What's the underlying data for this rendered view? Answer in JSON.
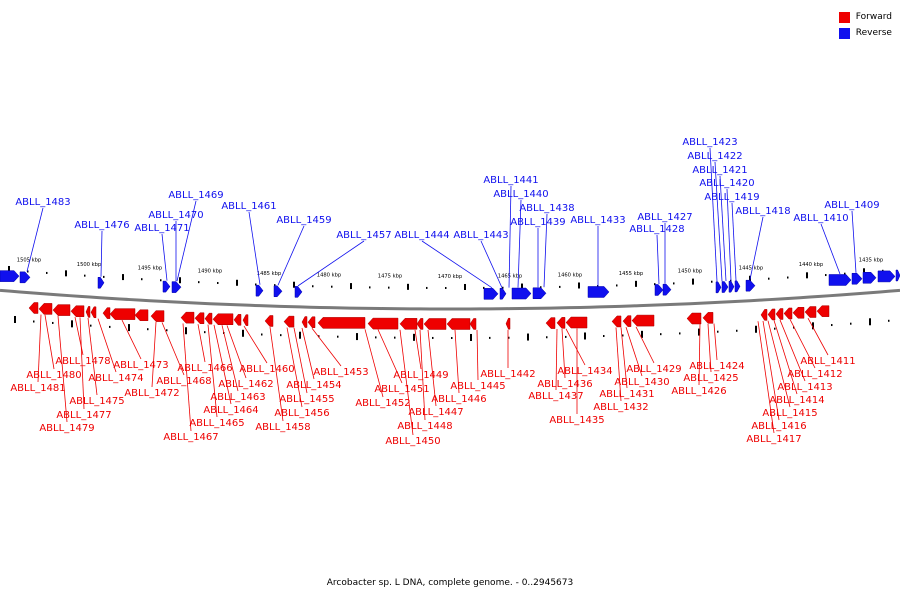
{
  "colors": {
    "forward": "#ee0000",
    "reverse": "#1010ee",
    "backbone": "#7a7a7a"
  },
  "legend": [
    {
      "label": "Forward",
      "color": "#ee0000"
    },
    {
      "label": "Reverse",
      "color": "#1010ee"
    }
  ],
  "caption": "Arcobacter sp. L DNA, complete genome. - 0..2945673",
  "ruler_labels": [
    "1505 kbp",
    "1500 kbp",
    "1495 kbp",
    "1490 kbp",
    "1485 kbp",
    "1480 kbp",
    "1475 kbp",
    "1470 kbp",
    "1465 kbp",
    "1460 kbp",
    "1455 kbp",
    "1450 kbp",
    "1445 kbp",
    "1440 kbp",
    "1435 kbp"
  ],
  "reverse_labels": [
    "ABLL_1483",
    "ABLL_1476",
    "ABLL_1471",
    "ABLL_1470",
    "ABLL_1469",
    "ABLL_1461",
    "ABLL_1459",
    "ABLL_1457",
    "ABLL_1444",
    "ABLL_1443",
    "ABLL_1441",
    "ABLL_1440",
    "ABLL_1439",
    "ABLL_1438",
    "ABLL_1433",
    "ABLL_1428",
    "ABLL_1427",
    "ABLL_1423",
    "ABLL_1422",
    "ABLL_1421",
    "ABLL_1420",
    "ABLL_1419",
    "ABLL_1418",
    "ABLL_1410",
    "ABLL_1409"
  ],
  "forward_labels": [
    "ABLL_1481",
    "ABLL_1480",
    "ABLL_1479",
    "ABLL_1478",
    "ABLL_1477",
    "ABLL_1475",
    "ABLL_1474",
    "ABLL_1473",
    "ABLL_1472",
    "ABLL_1468",
    "ABLL_1467",
    "ABLL_1466",
    "ABLL_1465",
    "ABLL_1464",
    "ABLL_1463",
    "ABLL_1462",
    "ABLL_1460",
    "ABLL_1458",
    "ABLL_1456",
    "ABLL_1455",
    "ABLL_1454",
    "ABLL_1453",
    "ABLL_1452",
    "ABLL_1451",
    "ABLL_1450",
    "ABLL_1449",
    "ABLL_1448",
    "ABLL_1447",
    "ABLL_1446",
    "ABLL_1445",
    "ABLL_1442",
    "ABLL_1437",
    "ABLL_1436",
    "ABLL_1435",
    "ABLL_1434",
    "ABLL_1432",
    "ABLL_1431",
    "ABLL_1430",
    "ABLL_1429",
    "ABLL_1426",
    "ABLL_1425",
    "ABLL_1424",
    "ABLL_1417",
    "ABLL_1416",
    "ABLL_1415",
    "ABLL_1414",
    "ABLL_1413",
    "ABLL_1412",
    "ABLL_1411"
  ]
}
